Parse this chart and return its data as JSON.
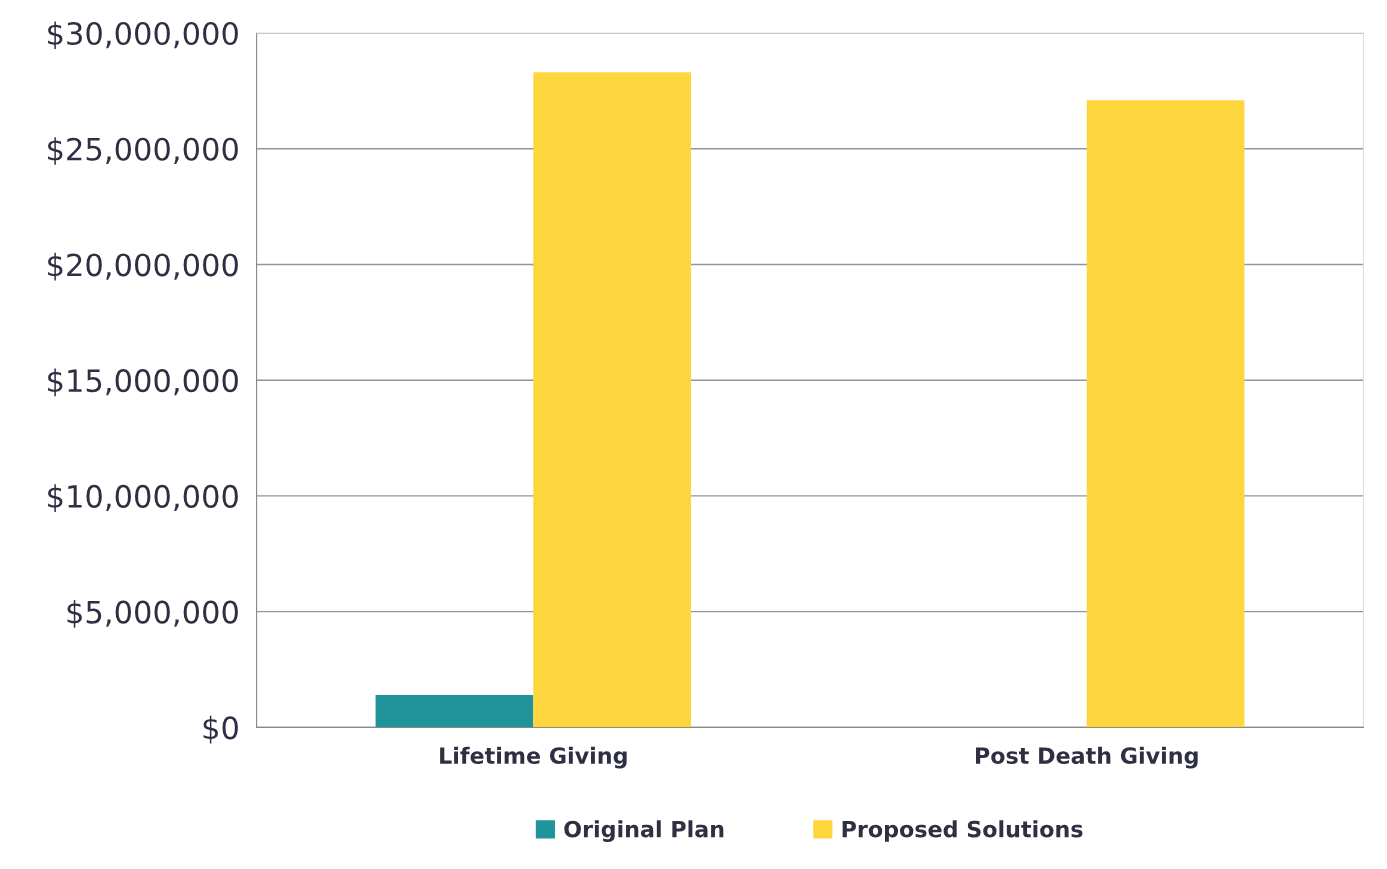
{
  "chart_data": {
    "type": "bar",
    "categories": [
      "Lifetime Giving",
      "Post Death Giving"
    ],
    "series": [
      {
        "name": "Original Plan",
        "color": "#21949b",
        "values": [
          1400000,
          0
        ]
      },
      {
        "name": "Proposed Solutions",
        "color": "#fdd63e",
        "values": [
          28300000,
          27100000
        ]
      }
    ],
    "ylim": [
      0,
      30000000
    ],
    "yticks": [
      {
        "value": 0,
        "label": "$0"
      },
      {
        "value": 5000000,
        "label": "$5,000,000"
      },
      {
        "value": 10000000,
        "label": "$10,000,000"
      },
      {
        "value": 15000000,
        "label": "$15,000,000"
      },
      {
        "value": 20000000,
        "label": "$20,000,000"
      },
      {
        "value": 25000000,
        "label": "$25,000,000"
      },
      {
        "value": 30000000,
        "label": "$30,000,000"
      }
    ],
    "grid": "y",
    "legend": "bottom"
  }
}
